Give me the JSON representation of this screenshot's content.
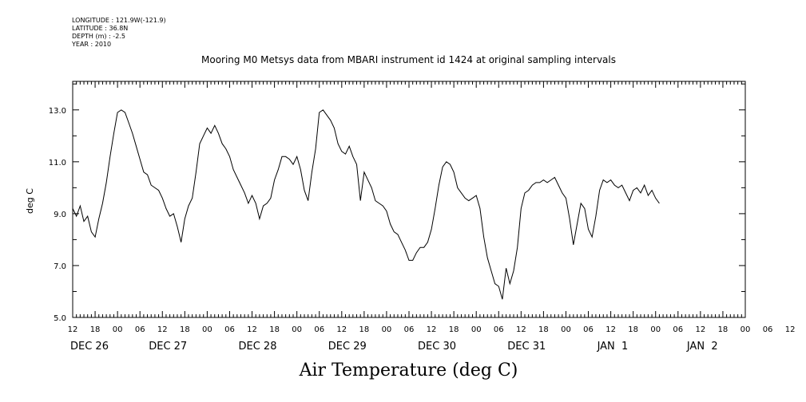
{
  "header": {
    "longitude": "LONGITUDE : 121.9W(-121.9)",
    "latitude": "LATITUDE : 36.8N",
    "depth": "DEPTH (m) : -2.5",
    "year": "YEAR : 2010"
  },
  "chart_data": {
    "type": "line",
    "title": "Mooring M0 Metsys data from MBARI instrument id 1424 at original sampling intervals",
    "xlabel": "Air Temperature (deg C)",
    "ylabel": "deg C",
    "ylim": [
      5.0,
      14.1
    ],
    "yticks": [
      5.0,
      7.0,
      9.0,
      11.0,
      13.0
    ],
    "ytick_labels": [
      "5.0",
      "7.0",
      "9.0",
      "11.0",
      "13.0"
    ],
    "xlim_hours": [
      0,
      180
    ],
    "x_hour_ticks": [
      "12",
      "18",
      "00",
      "06",
      "12",
      "18",
      "00",
      "06",
      "12",
      "18",
      "00",
      "06",
      "12",
      "18",
      "00",
      "06",
      "12",
      "18",
      "00",
      "06",
      "12",
      "18",
      "00",
      "06",
      "12",
      "18",
      "00",
      "06",
      "12",
      "18",
      "00",
      "06",
      "12"
    ],
    "x_date_labels": [
      {
        "label": "DEC 26",
        "hour": 0
      },
      {
        "label": "DEC 27",
        "hour": 21
      },
      {
        "label": "DEC 28",
        "hour": 45
      },
      {
        "label": "DEC 29",
        "hour": 69
      },
      {
        "label": "DEC 30",
        "hour": 93
      },
      {
        "label": "DEC 31",
        "hour": 117
      },
      {
        "label": "JAN  1",
        "hour": 141
      },
      {
        "label": "JAN  2",
        "hour": 165
      }
    ],
    "series": [
      {
        "values": [
          [
            0,
            9.2
          ],
          [
            1,
            8.9
          ],
          [
            2,
            9.3
          ],
          [
            3,
            8.7
          ],
          [
            4,
            8.9
          ],
          [
            5,
            8.3
          ],
          [
            6,
            8.1
          ],
          [
            7,
            8.8
          ],
          [
            8,
            9.4
          ],
          [
            9,
            10.2
          ],
          [
            10,
            11.2
          ],
          [
            11,
            12.1
          ],
          [
            12,
            12.9
          ],
          [
            13,
            13.0
          ],
          [
            14,
            12.9
          ],
          [
            15,
            12.5
          ],
          [
            16,
            12.1
          ],
          [
            17,
            11.6
          ],
          [
            18,
            11.1
          ],
          [
            19,
            10.6
          ],
          [
            20,
            10.5
          ],
          [
            21,
            10.1
          ],
          [
            22,
            10.0
          ],
          [
            23,
            9.9
          ],
          [
            24,
            9.6
          ],
          [
            25,
            9.2
          ],
          [
            26,
            8.9
          ],
          [
            27,
            9.0
          ],
          [
            28,
            8.5
          ],
          [
            29,
            7.9
          ],
          [
            30,
            8.8
          ],
          [
            31,
            9.3
          ],
          [
            32,
            9.6
          ],
          [
            33,
            10.6
          ],
          [
            34,
            11.7
          ],
          [
            35,
            12.0
          ],
          [
            36,
            12.3
          ],
          [
            37,
            12.1
          ],
          [
            38,
            12.4
          ],
          [
            39,
            12.1
          ],
          [
            40,
            11.7
          ],
          [
            41,
            11.5
          ],
          [
            42,
            11.2
          ],
          [
            43,
            10.7
          ],
          [
            44,
            10.4
          ],
          [
            45,
            10.1
          ],
          [
            46,
            9.8
          ],
          [
            47,
            9.4
          ],
          [
            48,
            9.7
          ],
          [
            49,
            9.4
          ],
          [
            50,
            8.8
          ],
          [
            51,
            9.3
          ],
          [
            52,
            9.4
          ],
          [
            53,
            9.6
          ],
          [
            54,
            10.3
          ],
          [
            55,
            10.7
          ],
          [
            56,
            11.2
          ],
          [
            57,
            11.2
          ],
          [
            58,
            11.1
          ],
          [
            59,
            10.9
          ],
          [
            60,
            11.2
          ],
          [
            61,
            10.7
          ],
          [
            62,
            9.9
          ],
          [
            63,
            9.5
          ],
          [
            64,
            10.6
          ],
          [
            65,
            11.5
          ],
          [
            66,
            12.9
          ],
          [
            67,
            13.0
          ],
          [
            68,
            12.8
          ],
          [
            69,
            12.6
          ],
          [
            70,
            12.3
          ],
          [
            71,
            11.7
          ],
          [
            72,
            11.4
          ],
          [
            73,
            11.3
          ],
          [
            74,
            11.6
          ],
          [
            75,
            11.2
          ],
          [
            76,
            10.9
          ],
          [
            77,
            9.5
          ],
          [
            78,
            10.6
          ],
          [
            79,
            10.3
          ],
          [
            80,
            10.0
          ],
          [
            81,
            9.5
          ],
          [
            82,
            9.4
          ],
          [
            83,
            9.3
          ],
          [
            84,
            9.1
          ],
          [
            85,
            8.6
          ],
          [
            86,
            8.3
          ],
          [
            87,
            8.2
          ],
          [
            88,
            7.9
          ],
          [
            89,
            7.6
          ],
          [
            90,
            7.2
          ],
          [
            91,
            7.2
          ],
          [
            92,
            7.5
          ],
          [
            93,
            7.7
          ],
          [
            94,
            7.7
          ],
          [
            95,
            7.9
          ],
          [
            96,
            8.4
          ],
          [
            97,
            9.2
          ],
          [
            98,
            10.1
          ],
          [
            99,
            10.8
          ],
          [
            100,
            11.0
          ],
          [
            101,
            10.9
          ],
          [
            102,
            10.6
          ],
          [
            103,
            10.0
          ],
          [
            104,
            9.8
          ],
          [
            105,
            9.6
          ],
          [
            106,
            9.5
          ],
          [
            107,
            9.6
          ],
          [
            108,
            9.7
          ],
          [
            109,
            9.2
          ],
          [
            110,
            8.1
          ],
          [
            111,
            7.3
          ],
          [
            112,
            6.8
          ],
          [
            113,
            6.3
          ],
          [
            114,
            6.2
          ],
          [
            115,
            5.7
          ],
          [
            116,
            6.9
          ],
          [
            117,
            6.3
          ],
          [
            118,
            6.8
          ],
          [
            119,
            7.7
          ],
          [
            120,
            9.2
          ],
          [
            121,
            9.8
          ],
          [
            122,
            9.9
          ],
          [
            123,
            10.1
          ],
          [
            124,
            10.2
          ],
          [
            125,
            10.2
          ],
          [
            126,
            10.3
          ],
          [
            127,
            10.2
          ],
          [
            128,
            10.3
          ],
          [
            129,
            10.4
          ],
          [
            130,
            10.1
          ],
          [
            131,
            9.8
          ],
          [
            132,
            9.6
          ],
          [
            133,
            8.8
          ],
          [
            134,
            7.8
          ],
          [
            135,
            8.6
          ],
          [
            136,
            9.4
          ],
          [
            137,
            9.2
          ],
          [
            138,
            8.4
          ],
          [
            139,
            8.1
          ],
          [
            140,
            8.9
          ],
          [
            141,
            9.9
          ],
          [
            142,
            10.3
          ],
          [
            143,
            10.2
          ],
          [
            144,
            10.3
          ],
          [
            145,
            10.1
          ],
          [
            146,
            10.0
          ],
          [
            147,
            10.1
          ],
          [
            148,
            9.8
          ],
          [
            149,
            9.5
          ],
          [
            150,
            9.9
          ],
          [
            151,
            10.0
          ],
          [
            152,
            9.8
          ],
          [
            153,
            10.1
          ],
          [
            154,
            9.7
          ],
          [
            155,
            9.9
          ],
          [
            156,
            9.6
          ],
          [
            157,
            9.4
          ]
        ]
      }
    ]
  }
}
